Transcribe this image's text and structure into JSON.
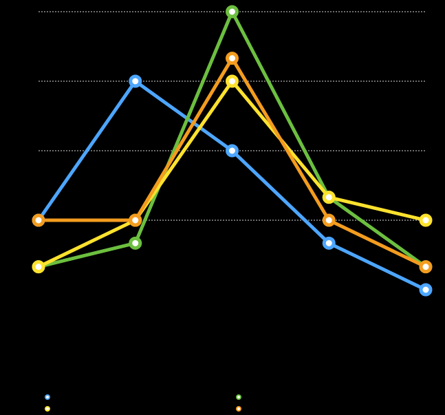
{
  "chart_data": {
    "type": "line",
    "categories": [
      null,
      null,
      null,
      null,
      null
    ],
    "series": [
      {
        "color": "#4da6ff",
        "values": [
          2,
          4,
          3,
          1.67,
          1
        ]
      },
      {
        "color": "#6cbf3f",
        "values": [
          1.33,
          1.67,
          5,
          2.33,
          1.33
        ]
      },
      {
        "color": "#ffe22e",
        "values": [
          1.33,
          2,
          4,
          2.33,
          2
        ]
      },
      {
        "color": "#f39c1f",
        "values": [
          2,
          2,
          4.33,
          2,
          1.33
        ]
      }
    ],
    "ylim": [
      0,
      5
    ],
    "yticks": [
      2,
      3,
      4,
      5
    ],
    "grid": true
  }
}
